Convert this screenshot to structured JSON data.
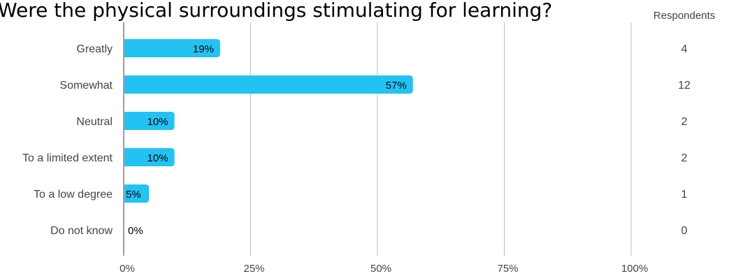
{
  "chart_data": {
    "type": "bar",
    "orientation": "horizontal",
    "title": "Were the physical surroundings stimulating for learning?",
    "categories": [
      "Greatly",
      "Somewhat",
      "Neutral",
      "To a limited extent",
      "To a low degree",
      "Do not know"
    ],
    "values": [
      19,
      57,
      10,
      10,
      5,
      0
    ],
    "value_labels": [
      "19%",
      "57%",
      "10%",
      "10%",
      "5%",
      "0%"
    ],
    "xlim": [
      0,
      100
    ],
    "x_ticks": [
      0,
      25,
      50,
      75,
      100
    ],
    "x_tick_labels": [
      "0%",
      "25%",
      "50%",
      "75%",
      "100%"
    ],
    "grid": true,
    "respondents_header": "Respondents",
    "respondents": [
      "4",
      "12",
      "2",
      "2",
      "1",
      "0"
    ],
    "bar_color": "#22c3f3"
  }
}
